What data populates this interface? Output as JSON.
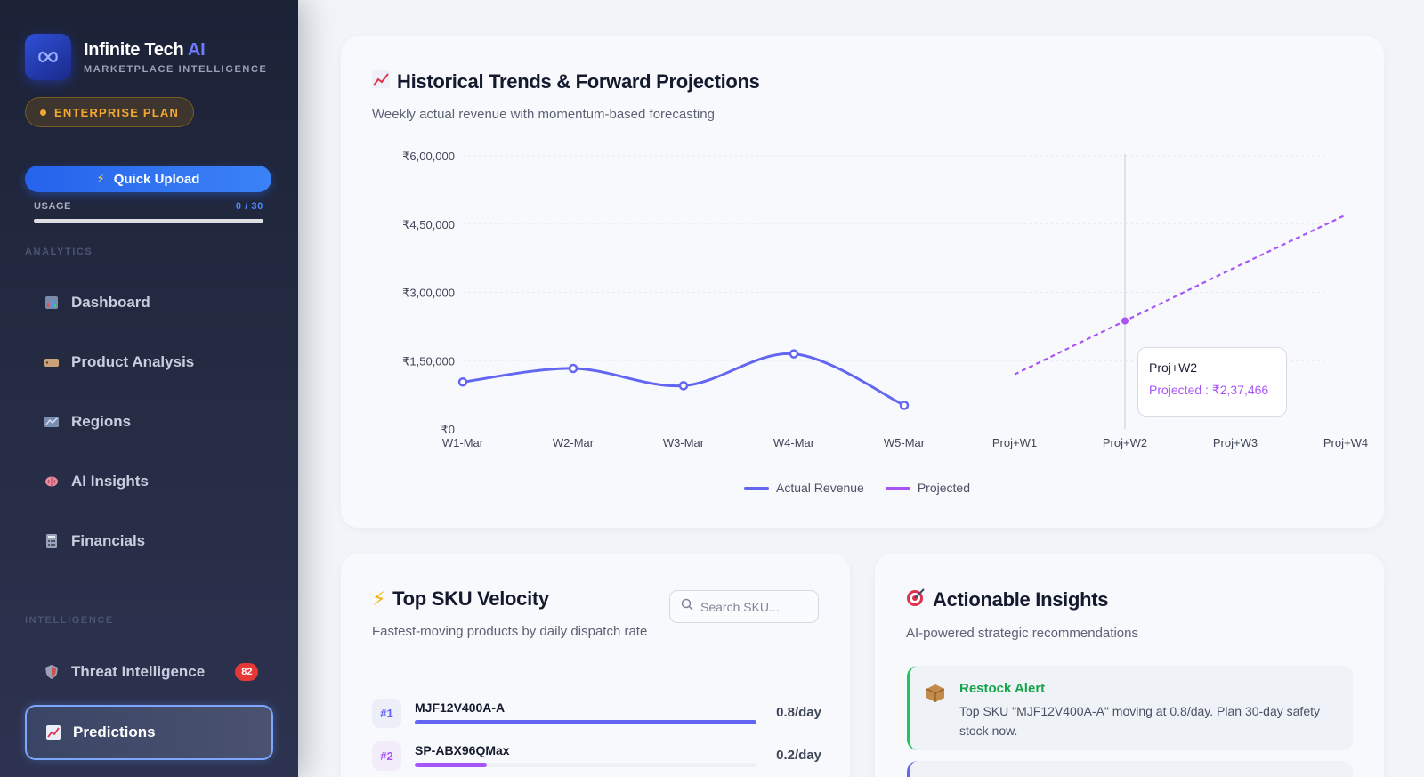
{
  "brand": {
    "name": "Infinite Tech ",
    "name_ai": "AI",
    "subtitle": "MARKETPLACE INTELLIGENCE",
    "logo_icon": "infinity-icon"
  },
  "plan": {
    "label": "ENTERPRISE PLAN"
  },
  "upload": {
    "label": "Quick Upload",
    "icon": "lightning-icon"
  },
  "usage": {
    "label": "USAGE",
    "value": "0 / 30",
    "fraction": 0.0
  },
  "sidebar": {
    "analytics_title": "ANALYTICS",
    "intelligence_title": "INTELLIGENCE",
    "analytics_items": [
      {
        "label": "Dashboard",
        "icon": "bar-chart-icon"
      },
      {
        "label": "Product Analysis",
        "icon": "tag-icon"
      },
      {
        "label": "Regions",
        "icon": "map-icon"
      },
      {
        "label": "AI Insights",
        "icon": "brain-icon"
      },
      {
        "label": "Financials",
        "icon": "calculator-icon"
      }
    ],
    "intelligence_items": [
      {
        "label": "Threat Intelligence",
        "icon": "shield-icon",
        "badge": "82"
      },
      {
        "label": "Predictions",
        "icon": "trend-chart-icon",
        "active": true
      }
    ]
  },
  "trends": {
    "title": "Historical Trends & Forward Projections",
    "subtitle": "Weekly actual revenue with momentum-based forecasting",
    "icon": "trend-chart-icon",
    "tooltip": {
      "label": "Proj+W2",
      "value": "Projected : ₹2,37,466"
    },
    "legend": [
      {
        "label": "Actual Revenue",
        "color": "#6366f1"
      },
      {
        "label": "Projected",
        "color": "#a855f7"
      }
    ]
  },
  "chart_data": {
    "type": "line",
    "title": "Historical Trends & Forward Projections",
    "x": [
      "W1-Mar",
      "W2-Mar",
      "W3-Mar",
      "W4-Mar",
      "W5-Mar",
      "Proj+W1",
      "Proj+W2",
      "Proj+W3",
      "Proj+W4"
    ],
    "y_ticks": [
      "₹0",
      "₹1,50,000",
      "₹3,00,000",
      "₹4,50,000",
      "₹6,00,000"
    ],
    "ylim": [
      0,
      600000
    ],
    "series": [
      {
        "name": "Actual Revenue",
        "color": "#6366f1",
        "style": "solid",
        "values": [
          103000,
          133000,
          95000,
          165000,
          52000,
          null,
          null,
          null,
          null
        ]
      },
      {
        "name": "Projected",
        "color": "#a855f7",
        "style": "dashed",
        "values": [
          null,
          null,
          null,
          null,
          null,
          120000,
          237466,
          355000,
          470000
        ]
      }
    ],
    "grid": true,
    "legend_position": "bottom-center"
  },
  "sku": {
    "title": "Top SKU Velocity",
    "subtitle": "Fastest-moving products by daily dispatch rate",
    "icon": "lightning-icon",
    "search_placeholder": "Search SKU...",
    "items": [
      {
        "rank": "#1",
        "name": "MJF12V400A-A",
        "rate": "0.8/day",
        "fraction": 1.0,
        "color": "#6366f1",
        "rank_color": "#6366f1"
      },
      {
        "rank": "#2",
        "name": "SP-ABX96QMax",
        "rate": "0.2/day",
        "fraction": 0.21,
        "color": "#a855f7",
        "rank_color": "#a855f7"
      }
    ]
  },
  "insights": {
    "title": "Actionable Insights",
    "subtitle": "AI-powered strategic recommendations",
    "icon": "target-icon",
    "items": [
      {
        "title": "Restock Alert",
        "text": "Top SKU \"MJF12V400A-A\" moving at 0.8/day. Plan 30-day safety stock now.",
        "icon": "package-icon",
        "color": "#16a34a"
      }
    ]
  }
}
